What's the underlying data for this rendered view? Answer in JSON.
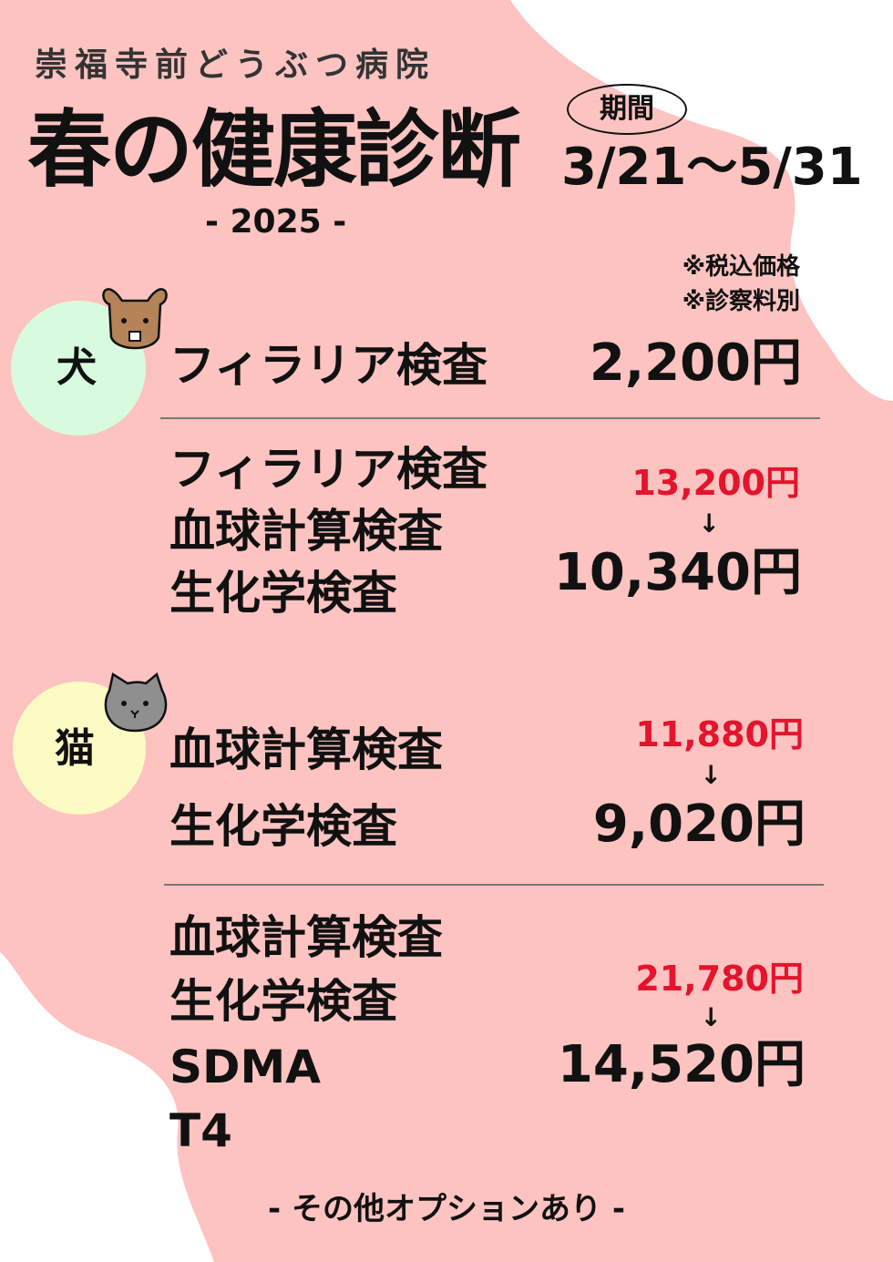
{
  "header": {
    "clinic_name": "崇福寺前どうぶつ病院",
    "title": "春の健康診断",
    "year": "- 2025 -",
    "period_label": "期間",
    "period_dates": "3/21〜5/31"
  },
  "notes": [
    "※税込価格",
    "※診察料別"
  ],
  "dog": {
    "label": "犬",
    "plans": [
      {
        "items": [
          "フィラリア検査"
        ],
        "price": "2,200円"
      },
      {
        "items": [
          "フィラリア検査",
          "血球計算検査",
          "生化学検査"
        ],
        "original_price": "13,200円",
        "arrow": "↓",
        "price": "10,340円"
      }
    ]
  },
  "cat": {
    "label": "猫",
    "plans": [
      {
        "items": [
          "血球計算検査",
          "生化学検査"
        ],
        "original_price": "11,880円",
        "arrow": "↓",
        "price": "9,020円"
      },
      {
        "items": [
          "血球計算検査",
          "生化学検査",
          "SDMA",
          "T4"
        ],
        "original_price": "21,780円",
        "arrow": "↓",
        "price": "14,520円"
      }
    ]
  },
  "footer": "- その他オプションあり -",
  "colors": {
    "background": "#fcc3c0",
    "dog_circle": "#d8fbe0",
    "cat_circle": "#fdfbc4",
    "discount_red": "#e3142c"
  },
  "icons": [
    "dog-face-icon",
    "cat-face-icon"
  ]
}
